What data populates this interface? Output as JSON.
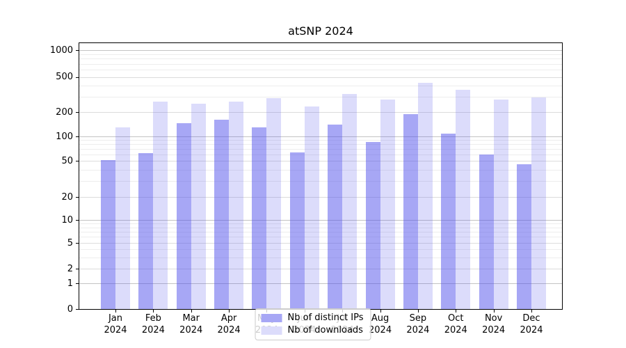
{
  "chart_data": {
    "type": "bar",
    "title": "atSNP 2024",
    "categories": [
      "Jan",
      "Feb",
      "Mar",
      "Apr",
      "May",
      "Jun",
      "Jul",
      "Aug",
      "Sep",
      "Oct",
      "Nov",
      "Dec"
    ],
    "x_year": "2024",
    "series": [
      {
        "name": "Nb of distinct IPs",
        "color": "rgba(80,80,235,0.5)",
        "swatch_color": "#a7a7f5",
        "values": [
          51,
          62,
          146,
          162,
          129,
          64,
          139,
          85,
          190,
          108,
          60,
          46
        ]
      },
      {
        "name": "Nb of downloads",
        "color": "rgba(80,80,235,0.2)",
        "swatch_color": "#dcdcfb",
        "values": [
          130,
          265,
          250,
          263,
          290,
          232,
          323,
          278,
          430,
          355,
          276,
          291
        ]
      }
    ],
    "yscale": "log-with-zero",
    "yticks": [
      1000,
      500,
      200,
      100,
      50,
      20,
      10,
      5,
      2,
      1,
      0
    ],
    "ytick_labels": [
      "1000",
      "500",
      "200",
      "100",
      "50",
      "20",
      "10",
      "5",
      "2",
      "1",
      "0"
    ],
    "ylim": [
      0,
      1300
    ],
    "xlabel": "",
    "ylabel": "",
    "grid": true,
    "legend_position": "lower center"
  }
}
